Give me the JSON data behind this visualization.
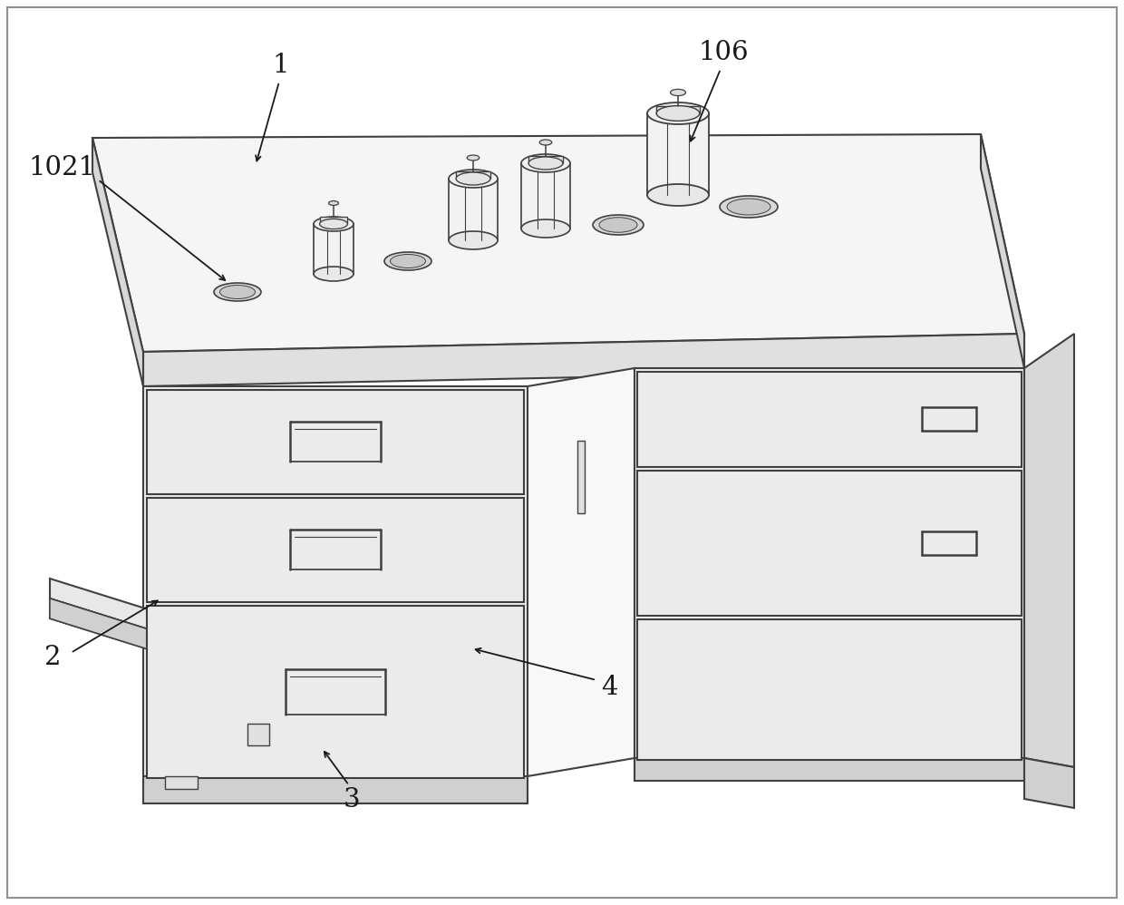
{
  "bg_color": "#ffffff",
  "lc": "#404040",
  "lw_main": 1.5,
  "lw_thin": 1.0,
  "fill_top": "#f5f5f5",
  "fill_front": "#efefef",
  "fill_side_l": "#e0e0e0",
  "fill_side_r": "#d8d8d8",
  "fill_drawer": "#ebebeb",
  "fill_dark": "#d0d0d0"
}
